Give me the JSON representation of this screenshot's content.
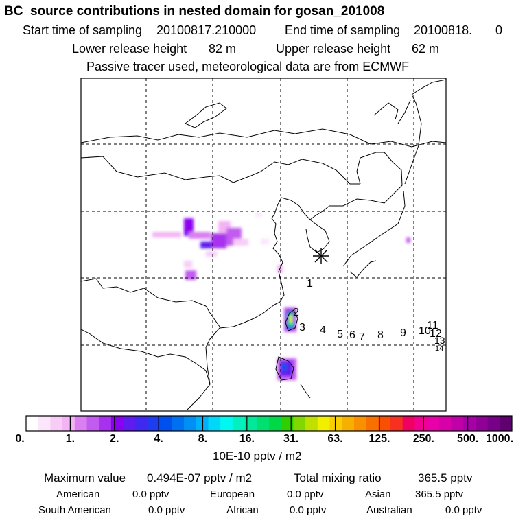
{
  "header": {
    "title": "BC  source contributions in nested domain for gosan_201008",
    "start_label": "Start time of sampling",
    "start_value": "20100817.210000",
    "end_label": "End time of sampling",
    "end_value": "20100818.",
    "end_extra": "0",
    "lower_label": "Lower release height",
    "lower_value": "82 m",
    "upper_label": "Upper release height",
    "upper_value": "62 m",
    "note": "Passive tracer used, meteorological data are from ECMWF"
  },
  "map": {
    "receptor_symbol": "star",
    "trajectory_points": [
      "1",
      "2",
      "3",
      "4",
      "5",
      "6",
      "7",
      "8",
      "9",
      "10",
      "11",
      "12",
      "13",
      "14"
    ]
  },
  "colorbar": {
    "unit": "10E-10 pptv / m2",
    "tick_labels": [
      "0.",
      "1.",
      "2.",
      "4.",
      "8.",
      "16.",
      "31.",
      "63.",
      "125.",
      "250.",
      "500.",
      "1000."
    ],
    "colors": [
      "#ffffff",
      "#fbe6fb",
      "#f7cdf7",
      "#f3b4f3",
      "#d97ff0",
      "#c25cef",
      "#a830ef",
      "#8b00f0",
      "#5e1cf0",
      "#4028f0",
      "#1e3cf0",
      "#0050f0",
      "#0070f2",
      "#0090f5",
      "#00b0f8",
      "#00d8f8",
      "#00f8f0",
      "#00f0c0",
      "#00e89a",
      "#00e070",
      "#00d848",
      "#30d000",
      "#80d800",
      "#c0e000",
      "#f0f000",
      "#f8d000",
      "#f8b000",
      "#f89000",
      "#f87000",
      "#f85000",
      "#f83020",
      "#f00060",
      "#f00090",
      "#e800a8",
      "#d800a8",
      "#c000a8",
      "#a800a8",
      "#900098",
      "#780088",
      "#600070"
    ]
  },
  "stats": {
    "max_label": "Maximum value",
    "max_value": "0.494E-07 pptv / m2",
    "total_label": "Total mixing ratio",
    "total_value": "365.5 pptv",
    "american_label": "American",
    "american_value": "0.0 pptv",
    "european_label": "European",
    "european_value": "0.0 pptv",
    "asian_label": "Asian",
    "asian_value": "365.5 pptv",
    "south_american_label": "South American",
    "south_american_value": "0.0 pptv",
    "african_label": "African",
    "african_value": "0.0 pptv",
    "australian_label": "Australian",
    "australian_value": "0.0 pptv"
  }
}
